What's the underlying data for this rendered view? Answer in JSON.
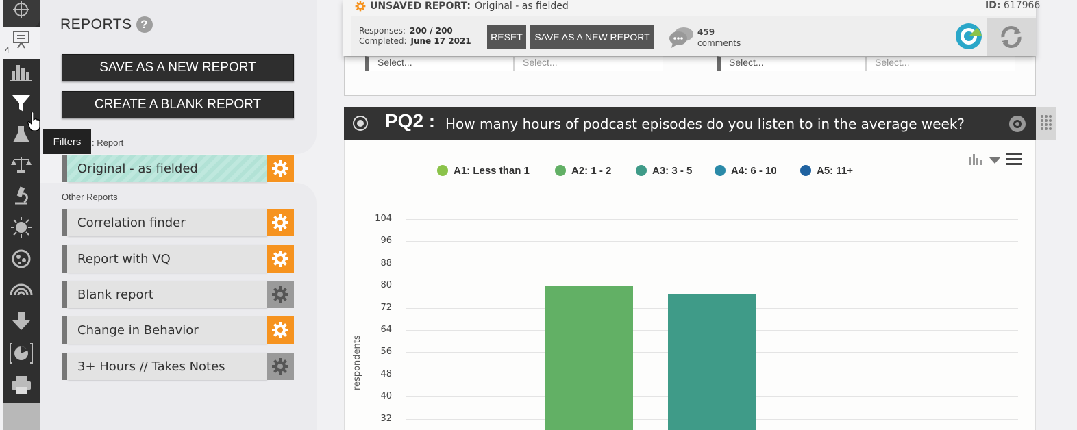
{
  "rail": {
    "badge": "4",
    "tooltip": "Filters"
  },
  "panel": {
    "title": "REPORTS",
    "help_glyph": "?",
    "save_new_label": "SAVE AS A NEW REPORT",
    "create_blank_label": "CREATE A BLANK REPORT",
    "current_label_visible": ": Report",
    "current_report": "Original - as fielded",
    "other_label": "Other Reports",
    "other_reports": [
      {
        "name": "Correlation finder",
        "gear": "orange"
      },
      {
        "name": "Report with VQ",
        "gear": "orange"
      },
      {
        "name": "Blank report",
        "gear": "gray"
      },
      {
        "name": "Change in Behavior",
        "gear": "orange"
      },
      {
        "name": "3+ Hours // Takes Notes",
        "gear": "gray"
      }
    ]
  },
  "topbar": {
    "unsaved_prefix": "UNSAVED REPORT:",
    "unsaved_name": "Original - as fielded",
    "id_label": "ID:",
    "id_value": "617966",
    "responses_label": "Responses:",
    "responses_value": "200 / 200",
    "completed_label": "Completed:",
    "completed_value": "June 17 2021",
    "reset_label": "RESET",
    "save_new_label": "SAVE AS A NEW REPORT",
    "comments_count": "459",
    "comments_label": "comments"
  },
  "selectors": {
    "placeholder": "Select..."
  },
  "question": {
    "code": "PQ2 :",
    "text": "How many hours of podcast episodes do you listen to in the average week?"
  },
  "chart_data": {
    "type": "bar",
    "title": "",
    "xlabel": "",
    "ylabel": "respondents",
    "ylim": [
      32,
      104
    ],
    "yticks": [
      104,
      96,
      88,
      80,
      72,
      64,
      56,
      48,
      40,
      32
    ],
    "legend_position": "top",
    "grid": true,
    "categories": [
      "A1: Less than 1",
      "A2: 1 - 2",
      "A3: 3 - 5",
      "A4: 6 - 10",
      "A5: 11+"
    ],
    "colors": [
      "#8bc34a",
      "#62b065",
      "#3f9b88",
      "#2b8aa8",
      "#1f62a0"
    ],
    "visible_bars": [
      {
        "category": "A2: 1 - 2",
        "value": 80,
        "color": "#62b065"
      },
      {
        "category": "A3: 3 - 5",
        "value": 77,
        "color": "#3f9b88"
      }
    ]
  }
}
